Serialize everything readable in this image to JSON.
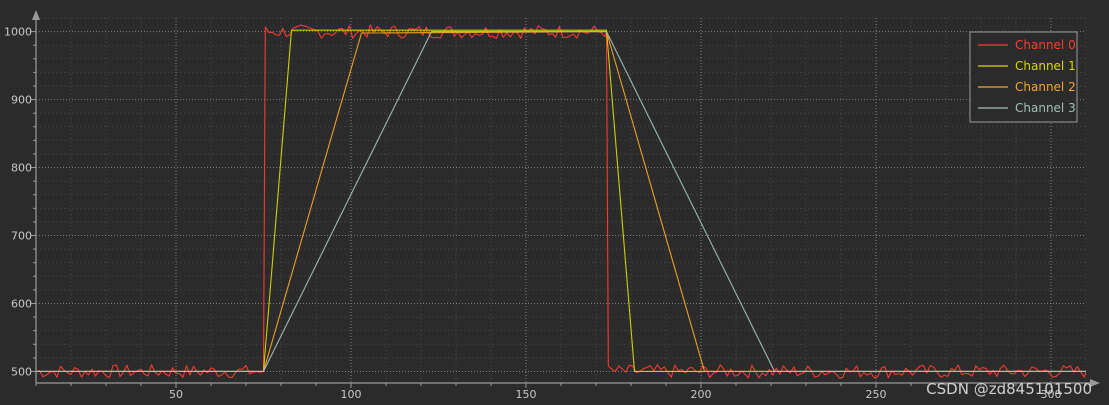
{
  "chart_data": {
    "type": "line",
    "title": "",
    "xlabel": "",
    "ylabel": "",
    "xlim": [
      10,
      310
    ],
    "ylim": [
      483,
      1020
    ],
    "x_ticks": [
      50,
      100,
      150,
      200,
      250,
      300
    ],
    "x_tick_labels": [
      "50",
      "100",
      "150",
      "200",
      "250",
      "300"
    ],
    "y_ticks": [
      500,
      600,
      700,
      800,
      900,
      1000
    ],
    "y_tick_labels": [
      "500",
      "600",
      "700",
      "800",
      "900",
      "1000"
    ],
    "grid": true,
    "minor_grid": true,
    "legend_position": "top-right",
    "background_color": "#2b2b2b",
    "grid_color": "#808080",
    "axis_color": "#9a9a9a",
    "noise": {
      "amplitude": 10,
      "seed": 7
    },
    "series": [
      {
        "name": "Channel 0",
        "color": "#ff3b30",
        "noisy": true,
        "points": [
          [
            10,
            500
          ],
          [
            75,
            500
          ],
          [
            75.5,
            1000
          ],
          [
            173,
            1000
          ],
          [
            173.5,
            500
          ],
          [
            310,
            500
          ]
        ]
      },
      {
        "name": "Channel 1",
        "color": "#d7d700",
        "noisy": false,
        "points": [
          [
            10,
            500
          ],
          [
            75,
            500
          ],
          [
            83,
            1002
          ],
          [
            173,
            1002
          ],
          [
            181,
            500
          ],
          [
            310,
            500
          ]
        ]
      },
      {
        "name": "Channel 2",
        "color": "#f5a623",
        "noisy": false,
        "points": [
          [
            10,
            500
          ],
          [
            75,
            500
          ],
          [
            103,
            998
          ],
          [
            173,
            1000
          ],
          [
            201,
            500
          ],
          [
            310,
            500
          ]
        ]
      },
      {
        "name": "Channel 3",
        "color": "#9fc0b8",
        "noisy": false,
        "points": [
          [
            10,
            500
          ],
          [
            75,
            500
          ],
          [
            123,
            1000
          ],
          [
            173,
            1000
          ],
          [
            221,
            500
          ],
          [
            310,
            500
          ]
        ]
      }
    ]
  },
  "watermark": "CSDN @zd845101500"
}
